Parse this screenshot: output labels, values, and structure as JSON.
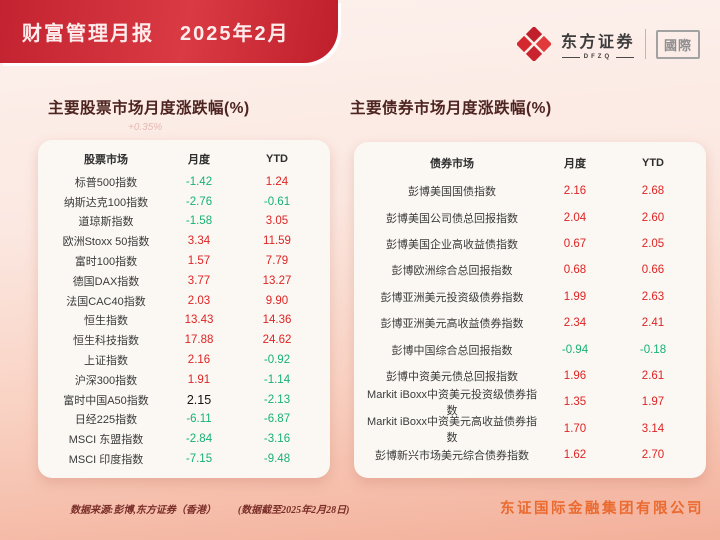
{
  "banner": {
    "title": "财富管理月报",
    "period": "2025年2月"
  },
  "logo": {
    "brand": "东方证券",
    "brand_sub": "DFZQ",
    "region": "國際"
  },
  "colors": {
    "up": "#dd2423",
    "down": "#17b173",
    "banner_red": "#c9222e",
    "company_orange": "#ea6a2f"
  },
  "watermark": "+0.35%",
  "stock_table": {
    "title": "主要股票市场月度涨跌幅(%)",
    "headers": [
      "股票市场",
      "月度",
      "YTD"
    ],
    "rows": [
      {
        "name": "标普500指数",
        "monthly": "-1.42",
        "monthly_dir": "down",
        "ytd": "1.24",
        "ytd_dir": "up"
      },
      {
        "name": "纳斯达克100指数",
        "monthly": "-2.76",
        "monthly_dir": "down",
        "ytd": "-0.61",
        "ytd_dir": "down"
      },
      {
        "name": "道琼斯指数",
        "monthly": "-1.58",
        "monthly_dir": "down",
        "ytd": "3.05",
        "ytd_dir": "up"
      },
      {
        "name": "欧洲Stoxx 50指数",
        "monthly": "3.34",
        "monthly_dir": "up",
        "ytd": "11.59",
        "ytd_dir": "up"
      },
      {
        "name": "富时100指数",
        "monthly": "1.57",
        "monthly_dir": "up",
        "ytd": "7.79",
        "ytd_dir": "up"
      },
      {
        "name": "德国DAX指数",
        "monthly": "3.77",
        "monthly_dir": "up",
        "ytd": "13.27",
        "ytd_dir": "up"
      },
      {
        "name": "法国CAC40指数",
        "monthly": "2.03",
        "monthly_dir": "up",
        "ytd": "9.90",
        "ytd_dir": "up"
      },
      {
        "name": "恒生指数",
        "monthly": "13.43",
        "monthly_dir": "up",
        "ytd": "14.36",
        "ytd_dir": "up"
      },
      {
        "name": "恒生科技指数",
        "monthly": "17.88",
        "monthly_dir": "up",
        "ytd": "24.62",
        "ytd_dir": "up"
      },
      {
        "name": "上证指数",
        "monthly": "2.16",
        "monthly_dir": "up",
        "ytd": "-0.92",
        "ytd_dir": "down"
      },
      {
        "name": "沪深300指数",
        "monthly": "1.91",
        "monthly_dir": "up",
        "ytd": "-1.14",
        "ytd_dir": "down"
      },
      {
        "name": "富时中国A50指数",
        "monthly": "2.15",
        "monthly_dir": "flat",
        "ytd": "-2.13",
        "ytd_dir": "down"
      },
      {
        "name": "日经225指数",
        "monthly": "-6.11",
        "monthly_dir": "down",
        "ytd": "-6.87",
        "ytd_dir": "down"
      },
      {
        "name": "MSCI 东盟指数",
        "monthly": "-2.84",
        "monthly_dir": "down",
        "ytd": "-3.16",
        "ytd_dir": "down"
      },
      {
        "name": "MSCI 印度指数",
        "monthly": "-7.15",
        "monthly_dir": "down",
        "ytd": "-9.48",
        "ytd_dir": "down"
      }
    ]
  },
  "bond_table": {
    "title": "主要债券市场月度涨跌幅(%)",
    "headers": [
      "债券市场",
      "月度",
      "YTD"
    ],
    "rows": [
      {
        "name": "彭博美国国债指数",
        "monthly": "2.16",
        "monthly_dir": "up",
        "ytd": "2.68",
        "ytd_dir": "up"
      },
      {
        "name": "彭博美国公司债总回报指数",
        "monthly": "2.04",
        "monthly_dir": "up",
        "ytd": "2.60",
        "ytd_dir": "up"
      },
      {
        "name": "彭博美国企业高收益债指数",
        "monthly": "0.67",
        "monthly_dir": "up",
        "ytd": "2.05",
        "ytd_dir": "up"
      },
      {
        "name": "彭博欧洲综合总回报指数",
        "monthly": "0.68",
        "monthly_dir": "up",
        "ytd": "0.66",
        "ytd_dir": "up"
      },
      {
        "name": "彭博亚洲美元投资级债券指数",
        "monthly": "1.99",
        "monthly_dir": "up",
        "ytd": "2.63",
        "ytd_dir": "up"
      },
      {
        "name": "彭博亚洲美元高收益债券指数",
        "monthly": "2.34",
        "monthly_dir": "up",
        "ytd": "2.41",
        "ytd_dir": "up"
      },
      {
        "name": "彭博中国综合总回报指数",
        "monthly": "-0.94",
        "monthly_dir": "down",
        "ytd": "-0.18",
        "ytd_dir": "down"
      },
      {
        "name": "彭博中资美元债总回报指数",
        "monthly": "1.96",
        "monthly_dir": "up",
        "ytd": "2.61",
        "ytd_dir": "up"
      },
      {
        "name": "Markit iBoxx中资美元投资级债券指数",
        "monthly": "1.35",
        "monthly_dir": "up",
        "ytd": "1.97",
        "ytd_dir": "up"
      },
      {
        "name": "Markit iBoxx中资美元高收益债券指数",
        "monthly": "1.70",
        "monthly_dir": "up",
        "ytd": "3.14",
        "ytd_dir": "up"
      },
      {
        "name": "彭博新兴市场美元综合债券指数",
        "monthly": "1.62",
        "monthly_dir": "up",
        "ytd": "2.70",
        "ytd_dir": "up"
      }
    ]
  },
  "footer": {
    "source": "数据来源:彭博,东方证券（香港）",
    "cutoff": "(数据截至2025年2月28日)",
    "company": "东证国际金融集团有限公司"
  }
}
